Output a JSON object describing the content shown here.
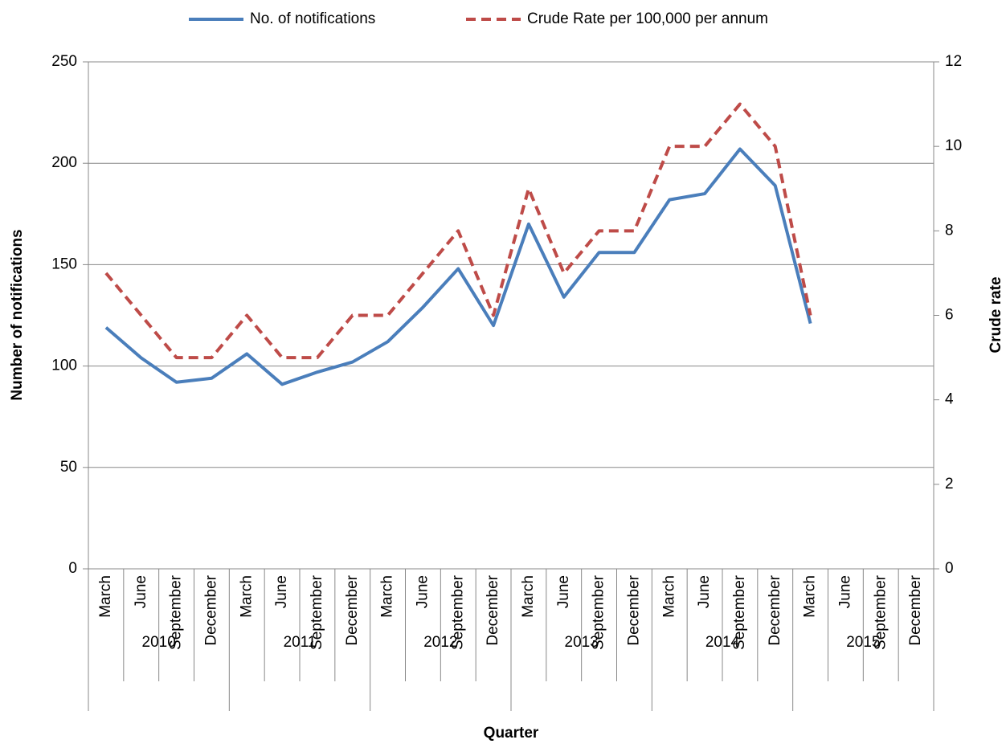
{
  "chart_data": {
    "type": "line",
    "categories": [
      "March",
      "June",
      "September",
      "December",
      "March",
      "June",
      "September",
      "December",
      "March",
      "June",
      "September",
      "December",
      "March",
      "June",
      "September",
      "December",
      "March",
      "June",
      "September",
      "December",
      "March",
      "June",
      "September",
      "December"
    ],
    "groups": [
      "2010",
      "2011",
      "2012",
      "2013",
      "2014",
      "2015"
    ],
    "x_label": "Quarter",
    "y_label": "Number of notifications",
    "y2_label": "Crude rate",
    "series": [
      {
        "name": "No. of notifications",
        "color": "#4a7ebb",
        "dashed": false,
        "values": [
          119,
          104,
          92,
          94,
          106,
          91,
          97,
          102,
          112,
          129,
          148,
          120,
          170,
          134,
          156,
          156,
          182,
          185,
          207,
          189,
          121,
          null,
          null,
          null
        ]
      },
      {
        "name": "Crude Rate per 100,000 per annum",
        "color": "#be4b48",
        "dashed": true,
        "axis": "y2",
        "values": [
          7,
          6,
          5,
          5,
          6,
          5,
          5,
          6,
          6,
          7,
          8,
          6,
          9,
          7,
          8,
          8,
          10,
          10,
          11,
          10,
          6,
          null,
          null,
          null
        ]
      }
    ],
    "ylim": [
      0,
      250
    ],
    "yticks": [
      0,
      50,
      100,
      150,
      200,
      250
    ],
    "y2lim": [
      0,
      12
    ],
    "y2ticks": [
      0,
      2,
      4,
      6,
      8,
      10,
      12
    ],
    "grid": true,
    "legend": "top"
  }
}
